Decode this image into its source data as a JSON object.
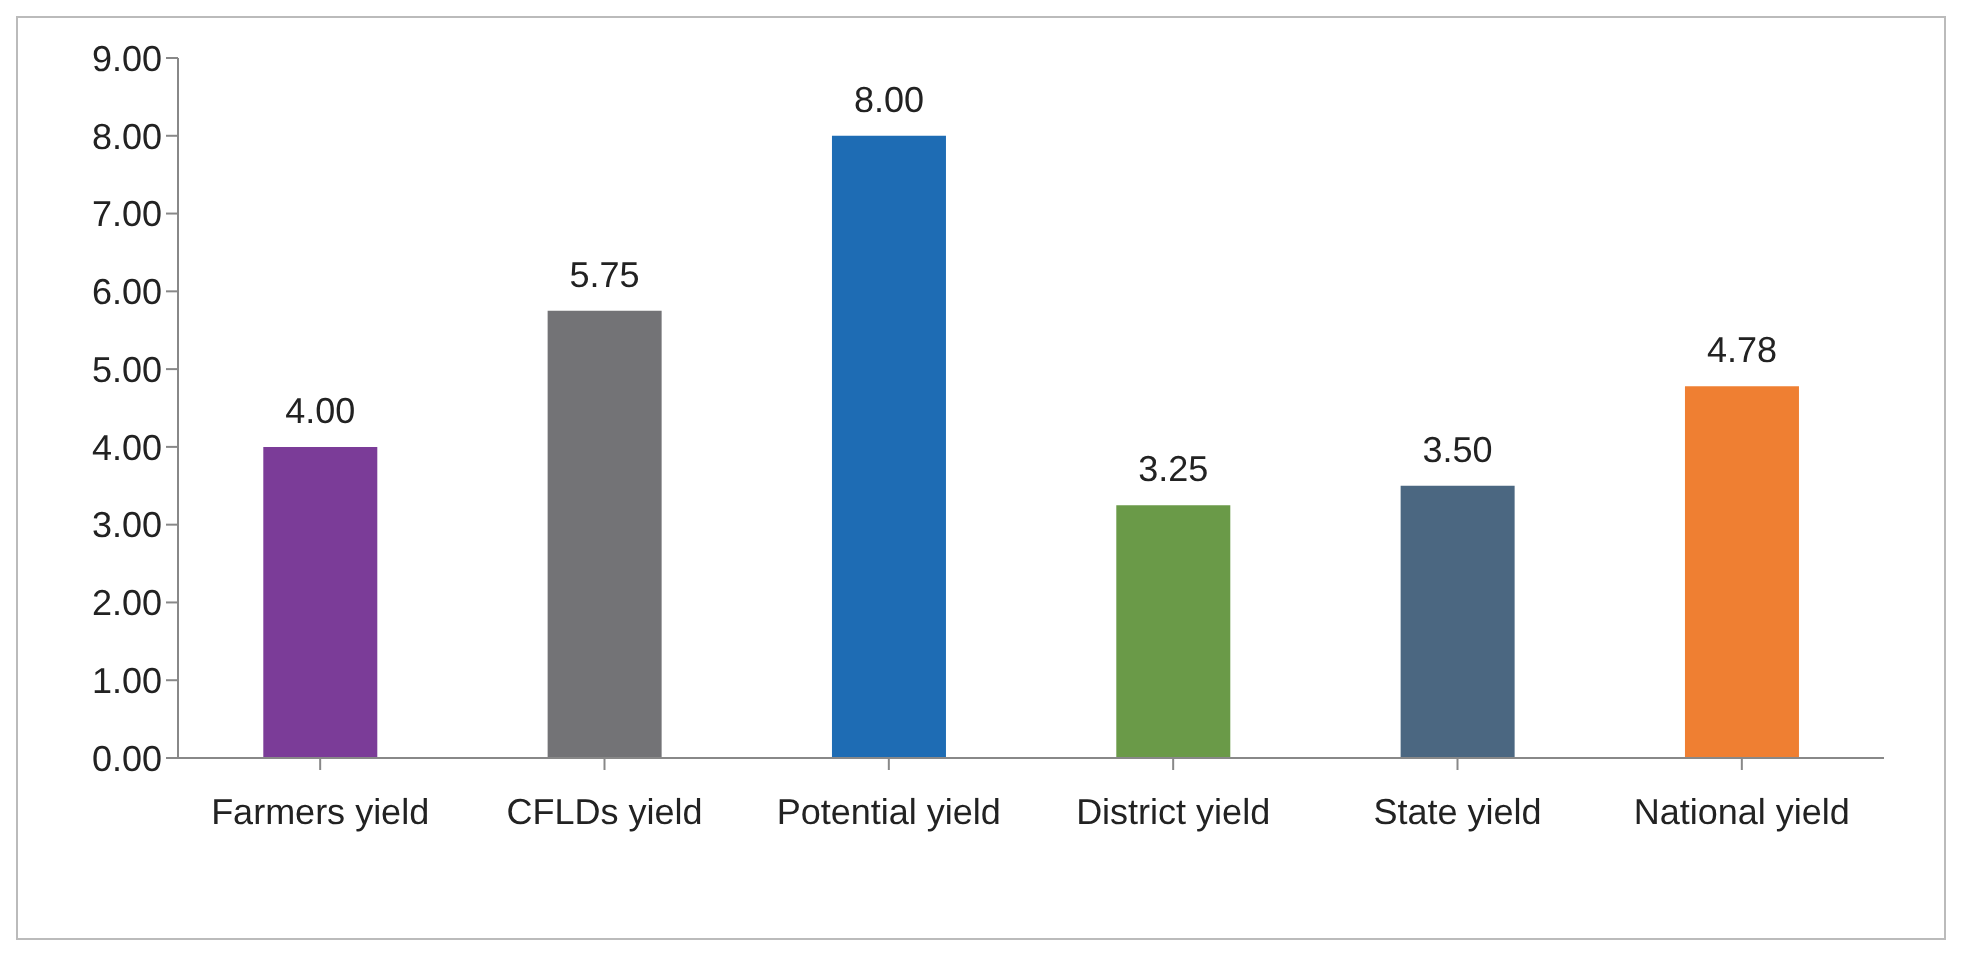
{
  "chart_data": {
    "type": "bar",
    "categories": [
      "Farmers yield",
      "CFLDs yield",
      "Potential yield",
      "District yield",
      "State yield",
      "National yield"
    ],
    "values": [
      4.0,
      5.75,
      8.0,
      3.25,
      3.5,
      4.78
    ],
    "value_labels": [
      "4.00",
      "5.75",
      "8.00",
      "3.25",
      "3.50",
      "4.78"
    ],
    "colors": [
      "#7b3c98",
      "#737376",
      "#1e6cb4",
      "#6a9a48",
      "#4b6781",
      "#ef7f32"
    ],
    "ylim": [
      0,
      9
    ],
    "yticks": [
      {
        "value": 0,
        "label": "0.00"
      },
      {
        "value": 1,
        "label": "1.00"
      },
      {
        "value": 2,
        "label": "2.00"
      },
      {
        "value": 3,
        "label": "3.00"
      },
      {
        "value": 4,
        "label": "4.00"
      },
      {
        "value": 5,
        "label": "5.00"
      },
      {
        "value": 6,
        "label": "6.00"
      },
      {
        "value": 7,
        "label": "7.00"
      },
      {
        "value": 8,
        "label": "8.00"
      },
      {
        "value": 9,
        "label": "9.00"
      }
    ]
  }
}
